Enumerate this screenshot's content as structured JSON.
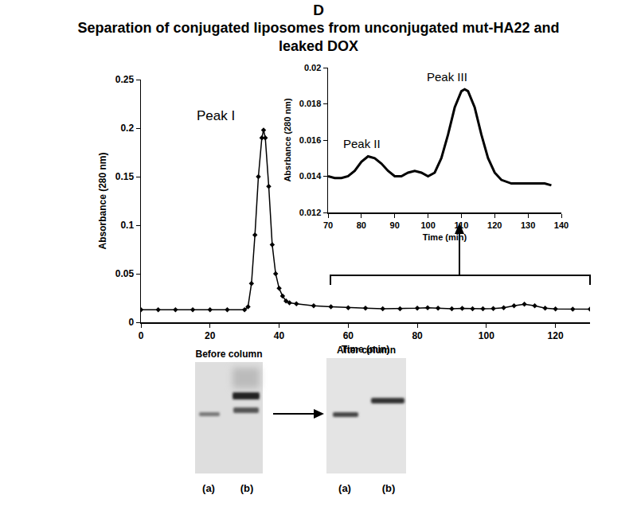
{
  "panel_label": "D",
  "chart_data": [
    {
      "type": "line",
      "title": "Separation of conjugated liposomes from unconjugated mut-HA22 and leaked DOX",
      "x_label": "Time (min)",
      "y_label": "Absorbance (280 nm)",
      "xlim": [
        0,
        130
      ],
      "xticks": [
        0,
        20,
        40,
        60,
        80,
        100,
        120
      ],
      "ylim": [
        0,
        0.25
      ],
      "yticks": [
        0,
        0.05,
        0.1,
        0.15,
        0.2,
        0.25
      ],
      "grid": false,
      "color": "#000000",
      "marker": "diamond",
      "line_style": "solid",
      "x": [
        0,
        5,
        10,
        15,
        20,
        25,
        30,
        31,
        32,
        33,
        34,
        35,
        35.5,
        36,
        37,
        38,
        39,
        40,
        41,
        42,
        43,
        45,
        50,
        55,
        60,
        65,
        70,
        75,
        80,
        83,
        86,
        90,
        93,
        96,
        99,
        102,
        105,
        108,
        111,
        114,
        117,
        120,
        125,
        130
      ],
      "values": [
        0.013,
        0.013,
        0.013,
        0.013,
        0.013,
        0.013,
        0.013,
        0.016,
        0.04,
        0.09,
        0.15,
        0.19,
        0.198,
        0.19,
        0.14,
        0.08,
        0.05,
        0.035,
        0.027,
        0.022,
        0.02,
        0.019,
        0.017,
        0.016,
        0.015,
        0.0145,
        0.014,
        0.014,
        0.0145,
        0.015,
        0.0145,
        0.014,
        0.0143,
        0.014,
        0.014,
        0.0142,
        0.015,
        0.017,
        0.0187,
        0.017,
        0.0145,
        0.0138,
        0.0136,
        0.0136
      ],
      "annotations": [
        {
          "text": "Peak I",
          "x": 36,
          "y": 0.198
        }
      ]
    },
    {
      "type": "line",
      "x_label": "Time (min)",
      "y_label": "Absrbance (280 nm)",
      "xlim": [
        70,
        140
      ],
      "xticks": [
        70,
        80,
        90,
        100,
        110,
        120,
        130,
        140
      ],
      "ylim": [
        0.012,
        0.02
      ],
      "yticks": [
        0.012,
        0.014,
        0.016,
        0.018,
        0.02
      ],
      "grid": false,
      "color": "#000000",
      "line_style": "solid",
      "x": [
        70,
        72,
        74,
        76,
        78,
        80,
        82,
        84,
        86,
        88,
        90,
        92,
        94,
        96,
        98,
        100,
        102,
        104,
        106,
        108,
        110,
        111,
        112,
        114,
        116,
        118,
        120,
        122,
        125,
        130,
        135,
        137
      ],
      "values": [
        0.014,
        0.0139,
        0.0139,
        0.014,
        0.0143,
        0.0148,
        0.0151,
        0.015,
        0.0147,
        0.0143,
        0.014,
        0.014,
        0.0142,
        0.0143,
        0.0142,
        0.014,
        0.0142,
        0.015,
        0.0163,
        0.0178,
        0.0187,
        0.0188,
        0.0187,
        0.0178,
        0.0163,
        0.015,
        0.0142,
        0.0138,
        0.0136,
        0.0136,
        0.0136,
        0.0135
      ],
      "annotations": [
        {
          "text": "Peak II",
          "x": 82,
          "y": 0.0151
        },
        {
          "text": "Peak III",
          "x": 111,
          "y": 0.0188
        }
      ]
    }
  ],
  "gels": [
    {
      "label": "Before column",
      "lanes": [
        "(a)",
        "(b)"
      ]
    },
    {
      "label": "After column",
      "lanes": [
        "(a)",
        "(b)"
      ]
    }
  ]
}
